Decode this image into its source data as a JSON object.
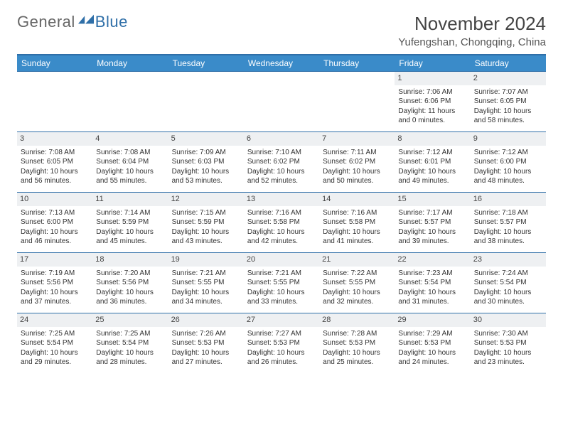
{
  "brand": {
    "general": "General",
    "blue": "Blue"
  },
  "title": "November 2024",
  "location": "Yufengshan, Chongqing, China",
  "colors": {
    "header_bg": "#3a8bc9",
    "rule": "#2f6fa8",
    "daynum_bg": "#eef0f2",
    "text": "#333333"
  },
  "weekdays": [
    "Sunday",
    "Monday",
    "Tuesday",
    "Wednesday",
    "Thursday",
    "Friday",
    "Saturday"
  ],
  "weeks": [
    [
      null,
      null,
      null,
      null,
      null,
      {
        "n": "1",
        "sunrise": "Sunrise: 7:06 AM",
        "sunset": "Sunset: 6:06 PM",
        "daylight": "Daylight: 11 hours and 0 minutes."
      },
      {
        "n": "2",
        "sunrise": "Sunrise: 7:07 AM",
        "sunset": "Sunset: 6:05 PM",
        "daylight": "Daylight: 10 hours and 58 minutes."
      }
    ],
    [
      {
        "n": "3",
        "sunrise": "Sunrise: 7:08 AM",
        "sunset": "Sunset: 6:05 PM",
        "daylight": "Daylight: 10 hours and 56 minutes."
      },
      {
        "n": "4",
        "sunrise": "Sunrise: 7:08 AM",
        "sunset": "Sunset: 6:04 PM",
        "daylight": "Daylight: 10 hours and 55 minutes."
      },
      {
        "n": "5",
        "sunrise": "Sunrise: 7:09 AM",
        "sunset": "Sunset: 6:03 PM",
        "daylight": "Daylight: 10 hours and 53 minutes."
      },
      {
        "n": "6",
        "sunrise": "Sunrise: 7:10 AM",
        "sunset": "Sunset: 6:02 PM",
        "daylight": "Daylight: 10 hours and 52 minutes."
      },
      {
        "n": "7",
        "sunrise": "Sunrise: 7:11 AM",
        "sunset": "Sunset: 6:02 PM",
        "daylight": "Daylight: 10 hours and 50 minutes."
      },
      {
        "n": "8",
        "sunrise": "Sunrise: 7:12 AM",
        "sunset": "Sunset: 6:01 PM",
        "daylight": "Daylight: 10 hours and 49 minutes."
      },
      {
        "n": "9",
        "sunrise": "Sunrise: 7:12 AM",
        "sunset": "Sunset: 6:00 PM",
        "daylight": "Daylight: 10 hours and 48 minutes."
      }
    ],
    [
      {
        "n": "10",
        "sunrise": "Sunrise: 7:13 AM",
        "sunset": "Sunset: 6:00 PM",
        "daylight": "Daylight: 10 hours and 46 minutes."
      },
      {
        "n": "11",
        "sunrise": "Sunrise: 7:14 AM",
        "sunset": "Sunset: 5:59 PM",
        "daylight": "Daylight: 10 hours and 45 minutes."
      },
      {
        "n": "12",
        "sunrise": "Sunrise: 7:15 AM",
        "sunset": "Sunset: 5:59 PM",
        "daylight": "Daylight: 10 hours and 43 minutes."
      },
      {
        "n": "13",
        "sunrise": "Sunrise: 7:16 AM",
        "sunset": "Sunset: 5:58 PM",
        "daylight": "Daylight: 10 hours and 42 minutes."
      },
      {
        "n": "14",
        "sunrise": "Sunrise: 7:16 AM",
        "sunset": "Sunset: 5:58 PM",
        "daylight": "Daylight: 10 hours and 41 minutes."
      },
      {
        "n": "15",
        "sunrise": "Sunrise: 7:17 AM",
        "sunset": "Sunset: 5:57 PM",
        "daylight": "Daylight: 10 hours and 39 minutes."
      },
      {
        "n": "16",
        "sunrise": "Sunrise: 7:18 AM",
        "sunset": "Sunset: 5:57 PM",
        "daylight": "Daylight: 10 hours and 38 minutes."
      }
    ],
    [
      {
        "n": "17",
        "sunrise": "Sunrise: 7:19 AM",
        "sunset": "Sunset: 5:56 PM",
        "daylight": "Daylight: 10 hours and 37 minutes."
      },
      {
        "n": "18",
        "sunrise": "Sunrise: 7:20 AM",
        "sunset": "Sunset: 5:56 PM",
        "daylight": "Daylight: 10 hours and 36 minutes."
      },
      {
        "n": "19",
        "sunrise": "Sunrise: 7:21 AM",
        "sunset": "Sunset: 5:55 PM",
        "daylight": "Daylight: 10 hours and 34 minutes."
      },
      {
        "n": "20",
        "sunrise": "Sunrise: 7:21 AM",
        "sunset": "Sunset: 5:55 PM",
        "daylight": "Daylight: 10 hours and 33 minutes."
      },
      {
        "n": "21",
        "sunrise": "Sunrise: 7:22 AM",
        "sunset": "Sunset: 5:55 PM",
        "daylight": "Daylight: 10 hours and 32 minutes."
      },
      {
        "n": "22",
        "sunrise": "Sunrise: 7:23 AM",
        "sunset": "Sunset: 5:54 PM",
        "daylight": "Daylight: 10 hours and 31 minutes."
      },
      {
        "n": "23",
        "sunrise": "Sunrise: 7:24 AM",
        "sunset": "Sunset: 5:54 PM",
        "daylight": "Daylight: 10 hours and 30 minutes."
      }
    ],
    [
      {
        "n": "24",
        "sunrise": "Sunrise: 7:25 AM",
        "sunset": "Sunset: 5:54 PM",
        "daylight": "Daylight: 10 hours and 29 minutes."
      },
      {
        "n": "25",
        "sunrise": "Sunrise: 7:25 AM",
        "sunset": "Sunset: 5:54 PM",
        "daylight": "Daylight: 10 hours and 28 minutes."
      },
      {
        "n": "26",
        "sunrise": "Sunrise: 7:26 AM",
        "sunset": "Sunset: 5:53 PM",
        "daylight": "Daylight: 10 hours and 27 minutes."
      },
      {
        "n": "27",
        "sunrise": "Sunrise: 7:27 AM",
        "sunset": "Sunset: 5:53 PM",
        "daylight": "Daylight: 10 hours and 26 minutes."
      },
      {
        "n": "28",
        "sunrise": "Sunrise: 7:28 AM",
        "sunset": "Sunset: 5:53 PM",
        "daylight": "Daylight: 10 hours and 25 minutes."
      },
      {
        "n": "29",
        "sunrise": "Sunrise: 7:29 AM",
        "sunset": "Sunset: 5:53 PM",
        "daylight": "Daylight: 10 hours and 24 minutes."
      },
      {
        "n": "30",
        "sunrise": "Sunrise: 7:30 AM",
        "sunset": "Sunset: 5:53 PM",
        "daylight": "Daylight: 10 hours and 23 minutes."
      }
    ]
  ]
}
